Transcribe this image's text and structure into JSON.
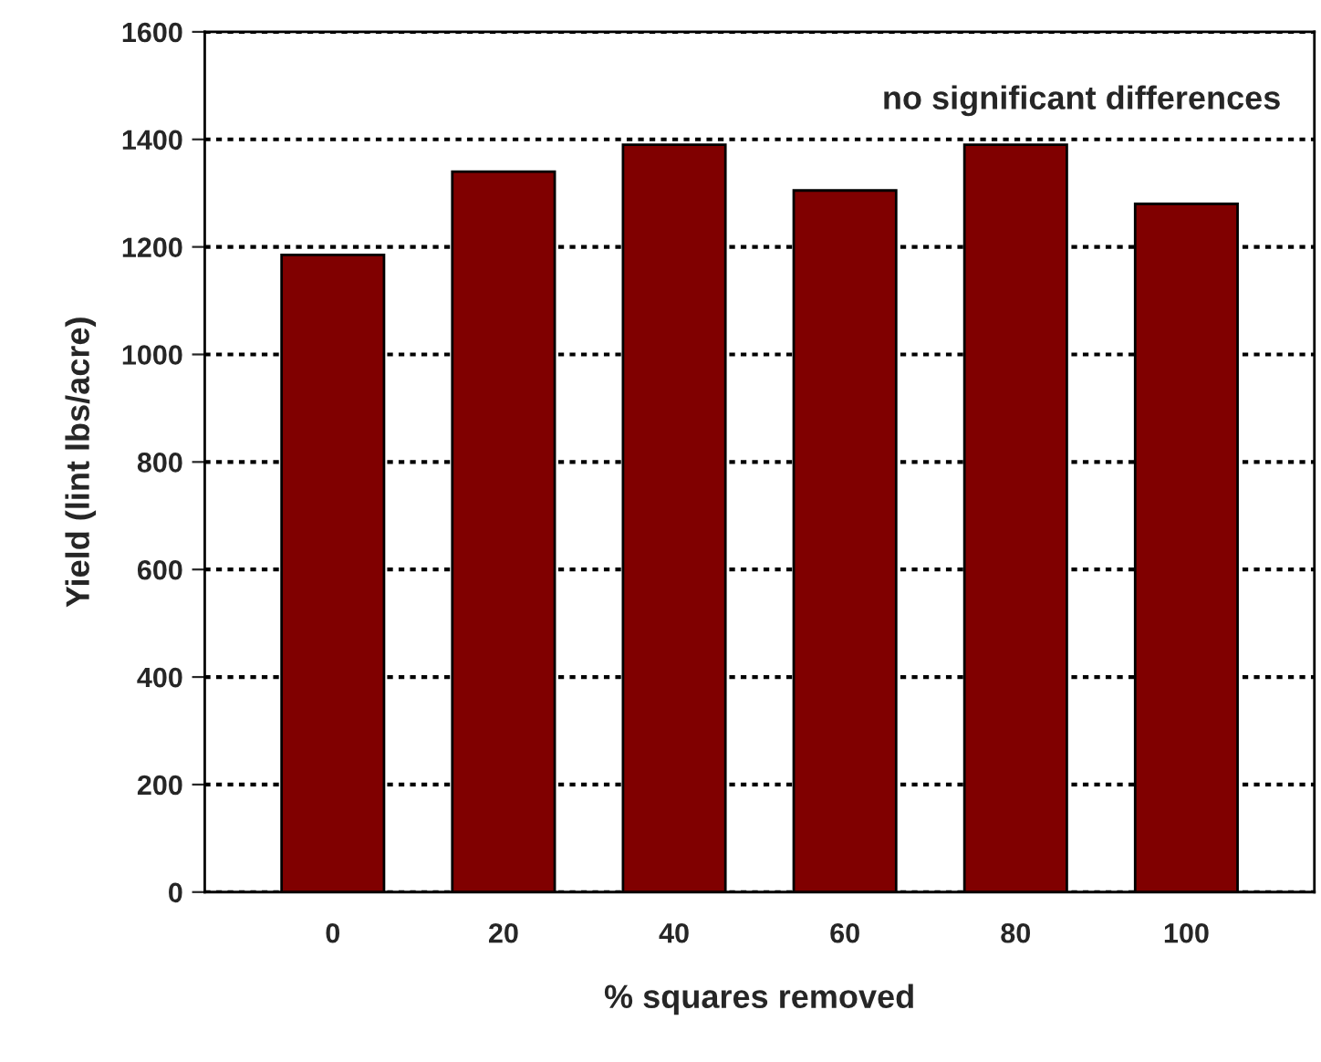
{
  "chart_data": {
    "type": "bar",
    "xlabel": "% squares removed",
    "ylabel": "Yield (lint lbs/acre)",
    "categories": [
      "0",
      "20",
      "40",
      "60",
      "80",
      "100"
    ],
    "values": [
      1185,
      1340,
      1390,
      1305,
      1390,
      1280
    ],
    "color": "#800000",
    "ylim": [
      0,
      1600
    ],
    "yticks": [
      0,
      200,
      400,
      600,
      800,
      1000,
      1200,
      1400,
      1600
    ],
    "grid": "y",
    "legend": false,
    "annotations": [
      "no significant differences"
    ]
  }
}
